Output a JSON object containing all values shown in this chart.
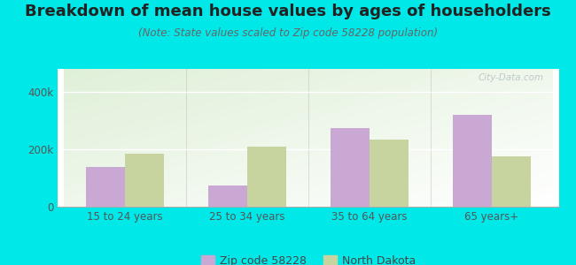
{
  "title": "Breakdown of mean house values by ages of householders",
  "subtitle": "(Note: State values scaled to Zip code 58228 population)",
  "categories": [
    "15 to 24 years",
    "25 to 34 years",
    "35 to 64 years",
    "65 years+"
  ],
  "zip_values": [
    140000,
    75000,
    275000,
    320000
  ],
  "state_values": [
    185000,
    210000,
    235000,
    175000
  ],
  "zip_color": "#c9a8d4",
  "state_color": "#c8d4a0",
  "background_color": "#00e8e8",
  "ylim": [
    0,
    480000
  ],
  "yticks": [
    0,
    200000,
    400000
  ],
  "ytick_labels": [
    "0",
    "200k",
    "400k"
  ],
  "legend_zip": "Zip code 58228",
  "legend_state": "North Dakota",
  "bar_width": 0.32,
  "title_fontsize": 13,
  "subtitle_fontsize": 8.5,
  "watermark_text": "City-Data.com"
}
